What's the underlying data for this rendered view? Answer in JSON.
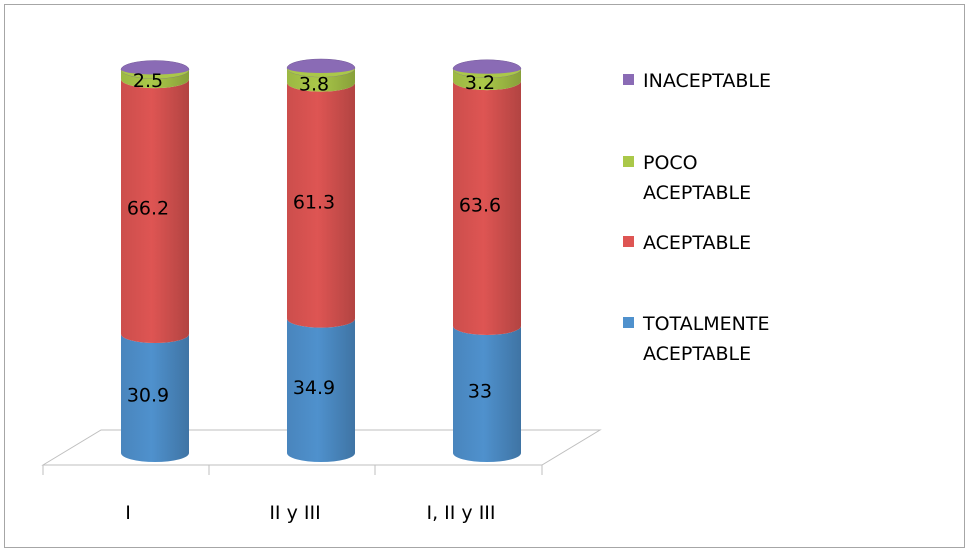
{
  "chart_data": {
    "type": "bar",
    "stacked": true,
    "three_d": true,
    "categories": [
      "I",
      "II y III",
      "I, II y III"
    ],
    "series": [
      {
        "name": "TOTALMENTE ACEPTABLE",
        "values": [
          30.9,
          34.9,
          33
        ],
        "labels": [
          "30.9",
          "34.9",
          "33"
        ],
        "color": "#4f91cd"
      },
      {
        "name": "ACEPTABLE",
        "values": [
          66.2,
          61.3,
          63.6
        ],
        "labels": [
          "66.2",
          "61.3",
          "63.6"
        ],
        "color": "#de5553"
      },
      {
        "name": "POCO ACEPTABLE",
        "values": [
          2.5,
          3.8,
          3.2
        ],
        "labels": [
          "2.5",
          "3.8",
          "3.2"
        ],
        "color": "#aac849"
      },
      {
        "name": "INACEPTABLE",
        "values": [
          0,
          0,
          0
        ],
        "labels": [
          "",
          "",
          ""
        ],
        "color": "#8a6bb5"
      }
    ],
    "legend_order": [
      {
        "series": 3,
        "lines": [
          "INACEPTABLE"
        ]
      },
      {
        "series": 2,
        "lines": [
          "POCO",
          "ACEPTABLE"
        ]
      },
      {
        "series": 1,
        "lines": [
          "ACEPTABLE"
        ]
      },
      {
        "series": 0,
        "lines": [
          "TOTALMENTE",
          "ACEPTABLE"
        ]
      }
    ],
    "ylim": [
      0,
      100
    ],
    "legend_position": "right",
    "grid": false
  }
}
